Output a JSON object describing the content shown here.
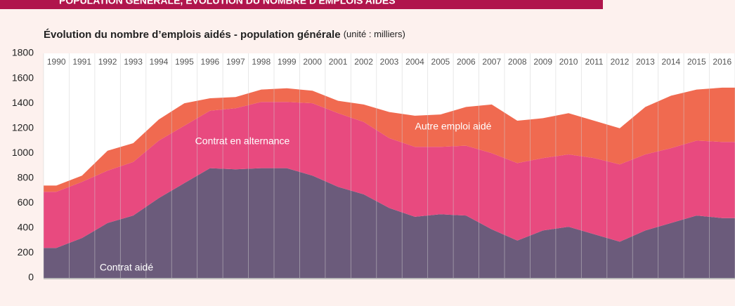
{
  "chart_data": {
    "type": "stacked_area",
    "banner": "POPULATION GÉNÉRALE, ÉVOLUTION DU NOMBRE D'EMPLOIS AIDÉS",
    "title": "Évolution du nombre d’emplois aidés - population générale",
    "subtitle": "(unité : milliers)",
    "categories": [
      "1990",
      "1991",
      "1992",
      "1993",
      "1994",
      "1995",
      "1996",
      "1997",
      "1998",
      "1999",
      "2000",
      "2001",
      "2002",
      "2003",
      "2004",
      "2005",
      "2006",
      "2007",
      "2008",
      "2009",
      "2010",
      "2011",
      "2012",
      "2013",
      "2014",
      "2015",
      "2016"
    ],
    "series": [
      {
        "name": "Contrat aidé",
        "color": "#6b5b7b",
        "values": [
          240,
          320,
          440,
          500,
          640,
          760,
          880,
          870,
          880,
          880,
          820,
          730,
          670,
          560,
          490,
          510,
          500,
          390,
          300,
          380,
          410,
          350,
          290,
          380,
          440,
          500,
          480
        ]
      },
      {
        "name": "Contrat en alternance",
        "color": "#e84a7f",
        "values": [
          450,
          450,
          420,
          430,
          460,
          460,
          460,
          490,
          530,
          530,
          580,
          590,
          580,
          560,
          560,
          540,
          560,
          610,
          620,
          580,
          580,
          610,
          620,
          610,
          600,
          600,
          610
        ]
      },
      {
        "name": "Autre emploi aidé",
        "color": "#f06a50",
        "values": [
          50,
          50,
          160,
          150,
          170,
          180,
          100,
          90,
          100,
          110,
          100,
          100,
          140,
          210,
          250,
          260,
          310,
          390,
          340,
          320,
          330,
          300,
          290,
          380,
          420,
          410,
          435
        ]
      }
    ],
    "ylim": [
      0,
      1800
    ],
    "yticks": [
      0,
      200,
      400,
      600,
      800,
      1000,
      1200,
      1400,
      1600,
      1800
    ],
    "grid": true
  }
}
